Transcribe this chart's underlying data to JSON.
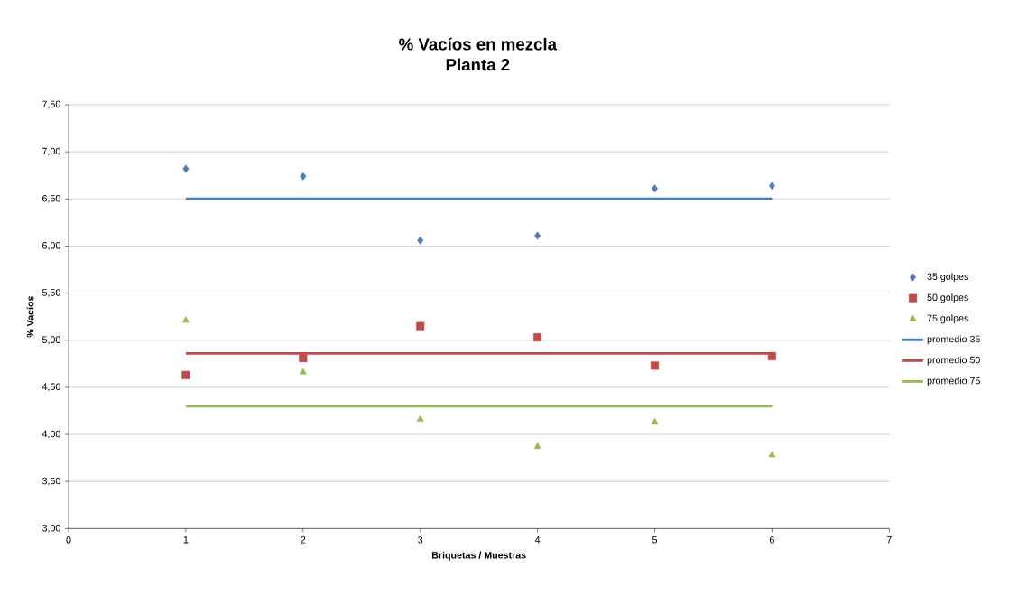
{
  "chart_data": {
    "type": "scatter",
    "title": "% Vacíos en mezcla",
    "subtitle": "Planta 2",
    "xlabel": "Briquetas / Muestras",
    "ylabel": "% Vacíos",
    "x": [
      1,
      2,
      3,
      4,
      5,
      6
    ],
    "series": [
      {
        "name": "35 golpes",
        "color": "#4a7ebb",
        "marker": "diamond",
        "values": [
          6.82,
          6.74,
          6.06,
          6.11,
          6.61,
          6.64
        ]
      },
      {
        "name": "50 golpes",
        "color": "#be4b48",
        "marker": "square",
        "values": [
          4.63,
          4.81,
          5.15,
          5.03,
          4.73,
          4.83
        ]
      },
      {
        "name": "75 golpes",
        "color": "#98b954",
        "marker": "triangle",
        "values": [
          5.21,
          4.66,
          4.16,
          3.87,
          4.13,
          3.78
        ]
      },
      {
        "name": "promedio 35",
        "type": "line",
        "color": "#4a7ebb",
        "marker": "none",
        "line_style": "solid",
        "values": [
          6.5,
          6.5,
          6.5,
          6.5,
          6.5,
          6.5
        ]
      },
      {
        "name": "promedio 50",
        "type": "line",
        "color": "#be4b48",
        "marker": "none",
        "line_style": "solid",
        "values": [
          4.86,
          4.86,
          4.86,
          4.86,
          4.86,
          4.86
        ]
      },
      {
        "name": "promedio 75",
        "type": "line",
        "color": "#98b954",
        "marker": "none",
        "line_style": "solid",
        "values": [
          4.3,
          4.3,
          4.3,
          4.3,
          4.3,
          4.3
        ]
      }
    ],
    "xlim": [
      0,
      7
    ],
    "xticks": [
      0,
      1,
      2,
      3,
      4,
      5,
      6,
      7
    ],
    "ylim": [
      3.0,
      7.5
    ],
    "yticks": [
      {
        "value": 3.0,
        "label": "3,00"
      },
      {
        "value": 3.5,
        "label": "3,50"
      },
      {
        "value": 4.0,
        "label": "4,00"
      },
      {
        "value": 4.5,
        "label": "4,50"
      },
      {
        "value": 5.0,
        "label": "5,00"
      },
      {
        "value": 5.5,
        "label": "5,50"
      },
      {
        "value": 6.0,
        "label": "6,00"
      },
      {
        "value": 6.5,
        "label": "6,50"
      },
      {
        "value": 7.0,
        "label": "7,00"
      },
      {
        "value": 7.5,
        "label": "7,50"
      }
    ],
    "grid": "y",
    "legend": "right"
  }
}
